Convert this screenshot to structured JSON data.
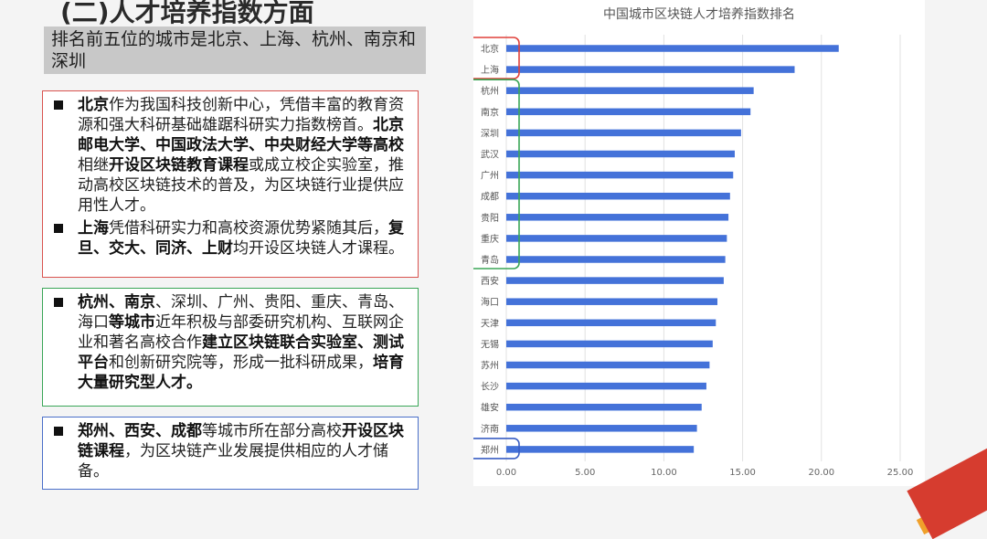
{
  "slide": {
    "title": "(二)人才培养指数方面",
    "subtitle": "排名前五位的城市是北京、上海、杭州、南京和深圳"
  },
  "box_red": {
    "items": [
      {
        "runs": [
          {
            "text": "北京",
            "bold": true
          },
          {
            "text": "作为我国科技创新中心，凭借丰富的教育资源和强大科研基础雄踞科研实力指数榜首。",
            "bold": false
          },
          {
            "text": "北京邮电大学、中国政法大学、中央财经大学等高校",
            "bold": true
          },
          {
            "text": "相继",
            "bold": false
          },
          {
            "text": "开设区块链教育课程",
            "bold": true
          },
          {
            "text": "或成立校企实验室，推动高校区块链技术的普及，为区块链行业提供应用性人才。",
            "bold": false
          }
        ]
      },
      {
        "runs": [
          {
            "text": "上海",
            "bold": true
          },
          {
            "text": "凭借科研实力和高校资源优势紧随其后，",
            "bold": false
          },
          {
            "text": "复旦、交大、同济、上财",
            "bold": true
          },
          {
            "text": "均开设区块链人才课程。",
            "bold": false
          }
        ]
      }
    ]
  },
  "box_green": {
    "items": [
      {
        "runs": [
          {
            "text": "杭州、南京",
            "bold": true
          },
          {
            "text": "、深圳、广州、贵阳、重庆、青岛、海口",
            "bold": false
          },
          {
            "text": "等城市",
            "bold": true
          },
          {
            "text": "近年积极与部委研究机构、互联网企业和著名高校合作",
            "bold": false
          },
          {
            "text": "建立区块链联合实验室、测试平台",
            "bold": true
          },
          {
            "text": "和创新研究院等，形成一批科研成果，",
            "bold": false
          },
          {
            "text": "培育大量研究型人才。",
            "bold": true
          }
        ]
      }
    ]
  },
  "box_blue": {
    "items": [
      {
        "runs": [
          {
            "text": "郑州、西安、成都",
            "bold": true
          },
          {
            "text": "等城市所在部分高校",
            "bold": false
          },
          {
            "text": "开设区块链课程",
            "bold": true
          },
          {
            "text": "，为区块链产业发展提供相应的人才储备。",
            "bold": false
          }
        ]
      }
    ]
  },
  "chart_data": {
    "type": "bar",
    "orientation": "horizontal",
    "title": "中国城市区块链人才培养指数排名",
    "categories": [
      "北京",
      "上海",
      "杭州",
      "南京",
      "深圳",
      "武汉",
      "广州",
      "成都",
      "贵阳",
      "重庆",
      "青岛",
      "西安",
      "海口",
      "天津",
      "无锡",
      "苏州",
      "长沙",
      "雄安",
      "济南",
      "郑州"
    ],
    "values": [
      21.1,
      18.3,
      15.7,
      15.5,
      14.9,
      14.5,
      14.4,
      14.2,
      14.1,
      14.0,
      13.9,
      13.8,
      13.4,
      13.3,
      13.1,
      12.9,
      12.7,
      12.4,
      12.1,
      11.9
    ],
    "xlim": [
      0,
      25
    ],
    "xticks": [
      "0.00",
      "5.00",
      "10.00",
      "15.00",
      "20.00",
      "25.00"
    ],
    "grid": true,
    "bar_color": "#4472d9",
    "highlight_groups": [
      {
        "color": "#e0413a",
        "from": 0,
        "to": 1
      },
      {
        "color": "#3aa657",
        "from": 2,
        "to": 10
      },
      {
        "color": "#3a5fc4",
        "from": 19,
        "to": 19
      }
    ]
  }
}
